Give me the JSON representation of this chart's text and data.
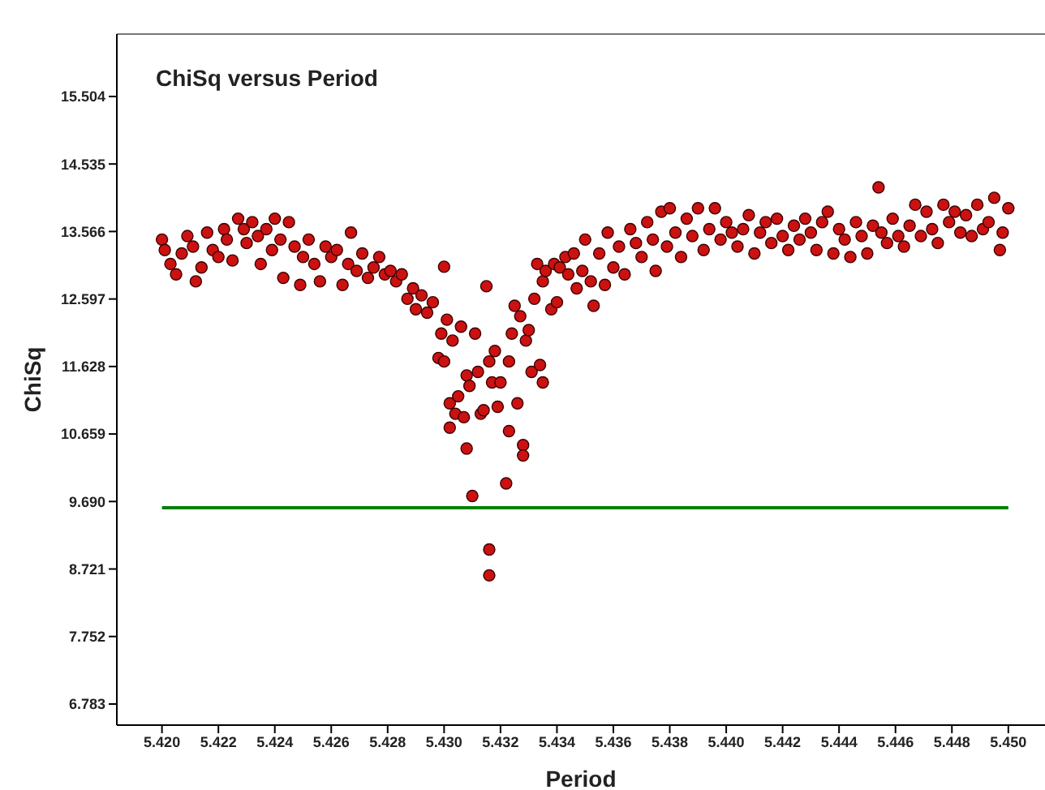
{
  "chart_data": {
    "type": "scatter",
    "title": "ChiSq versus Period",
    "xlabel": "Period",
    "ylabel": "ChiSq",
    "xlim": [
      5.4184,
      5.4513
    ],
    "ylim": [
      6.48,
      16.4
    ],
    "xticks": [
      {
        "value": 5.42,
        "label": "5.420"
      },
      {
        "value": 5.422,
        "label": "5.422"
      },
      {
        "value": 5.424,
        "label": "5.424"
      },
      {
        "value": 5.426,
        "label": "5.426"
      },
      {
        "value": 5.428,
        "label": "5.428"
      },
      {
        "value": 5.43,
        "label": "5.430"
      },
      {
        "value": 5.432,
        "label": "5.432"
      },
      {
        "value": 5.434,
        "label": "5.434"
      },
      {
        "value": 5.436,
        "label": "5.436"
      },
      {
        "value": 5.438,
        "label": "5.438"
      },
      {
        "value": 5.44,
        "label": "5.440"
      },
      {
        "value": 5.442,
        "label": "5.442"
      },
      {
        "value": 5.444,
        "label": "5.444"
      },
      {
        "value": 5.446,
        "label": "5.446"
      },
      {
        "value": 5.448,
        "label": "5.448"
      },
      {
        "value": 5.45,
        "label": "5.450"
      }
    ],
    "yticks": [
      {
        "value": 6.783,
        "label": "6.783"
      },
      {
        "value": 7.752,
        "label": "7.752"
      },
      {
        "value": 8.721,
        "label": "8.721"
      },
      {
        "value": 9.69,
        "label": "9.690"
      },
      {
        "value": 10.659,
        "label": "10.659"
      },
      {
        "value": 11.628,
        "label": "11.628"
      },
      {
        "value": 12.597,
        "label": "12.597"
      },
      {
        "value": 13.566,
        "label": "13.566"
      },
      {
        "value": 14.535,
        "label": "14.535"
      },
      {
        "value": 15.504,
        "label": "15.504"
      }
    ],
    "series": [
      {
        "marker": "circle",
        "color": "#cc1111",
        "x": [
          5.42,
          5.4201,
          5.4203,
          5.4205,
          5.4207,
          5.4209,
          5.4211,
          5.4212,
          5.4214,
          5.4216,
          5.4218,
          5.422,
          5.4222,
          5.4223,
          5.4225,
          5.4227,
          5.4229,
          5.423,
          5.4232,
          5.4234,
          5.4235,
          5.4237,
          5.4239,
          5.424,
          5.4242,
          5.4243,
          5.4245,
          5.4247,
          5.4249,
          5.425,
          5.4252,
          5.4254,
          5.4256,
          5.4258,
          5.426,
          5.4262,
          5.4264,
          5.4266,
          5.4267,
          5.4269,
          5.4271,
          5.4273,
          5.4275,
          5.4277,
          5.4279,
          5.4281,
          5.4283,
          5.4285,
          5.4287,
          5.4289,
          5.429,
          5.4292,
          5.4294,
          5.4296,
          5.43,
          5.4298,
          5.4299,
          5.43,
          5.4301,
          5.4302,
          5.4302,
          5.4303,
          5.4304,
          5.4305,
          5.4306,
          5.4307,
          5.4308,
          5.4308,
          5.4309,
          5.431,
          5.4311,
          5.4312,
          5.4313,
          5.4314,
          5.4315,
          5.4316,
          5.4316,
          5.4316,
          5.4317,
          5.4318,
          5.4319,
          5.432,
          5.4322,
          5.4323,
          5.4323,
          5.4324,
          5.4325,
          5.4326,
          5.4327,
          5.4328,
          5.4328,
          5.4329,
          5.433,
          5.4331,
          5.4332,
          5.4333,
          5.4334,
          5.4335,
          5.4335,
          5.4336,
          5.4338,
          5.4339,
          5.434,
          5.4341,
          5.4343,
          5.4344,
          5.4346,
          5.4347,
          5.4349,
          5.435,
          5.4352,
          5.4353,
          5.4355,
          5.4357,
          5.4358,
          5.436,
          5.4362,
          5.4364,
          5.4366,
          5.4368,
          5.437,
          5.4372,
          5.4374,
          5.4375,
          5.4377,
          5.4379,
          5.438,
          5.4382,
          5.4384,
          5.4386,
          5.4388,
          5.439,
          5.4392,
          5.4394,
          5.4396,
          5.4398,
          5.44,
          5.4402,
          5.4404,
          5.4406,
          5.4408,
          5.441,
          5.4412,
          5.4414,
          5.4416,
          5.4418,
          5.442,
          5.4422,
          5.4424,
          5.4426,
          5.4428,
          5.443,
          5.4432,
          5.4434,
          5.4436,
          5.4438,
          5.444,
          5.4442,
          5.4444,
          5.4446,
          5.4448,
          5.445,
          5.4452,
          5.4454,
          5.4455,
          5.4457,
          5.4459,
          5.4461,
          5.4463,
          5.4465,
          5.4467,
          5.4469,
          5.4471,
          5.4473,
          5.4475,
          5.4477,
          5.4479,
          5.4481,
          5.4483,
          5.4485,
          5.4487,
          5.4489,
          5.4491,
          5.4493,
          5.4495,
          5.4497,
          5.4498,
          5.45
        ],
        "values": [
          13.45,
          13.3,
          13.1,
          12.95,
          13.25,
          13.5,
          13.35,
          12.85,
          13.05,
          13.55,
          13.3,
          13.2,
          13.6,
          13.45,
          13.15,
          13.75,
          13.6,
          13.4,
          13.7,
          13.5,
          13.1,
          13.6,
          13.3,
          13.75,
          13.45,
          12.9,
          13.7,
          13.35,
          12.8,
          13.2,
          13.45,
          13.1,
          12.85,
          13.35,
          13.2,
          13.3,
          12.8,
          13.1,
          13.55,
          13.0,
          13.25,
          12.9,
          13.05,
          13.2,
          12.95,
          13.0,
          12.85,
          12.95,
          12.6,
          12.75,
          12.45,
          12.65,
          12.4,
          12.55,
          13.06,
          11.75,
          12.1,
          11.7,
          12.3,
          10.75,
          11.1,
          12.0,
          10.95,
          11.2,
          12.2,
          10.9,
          11.5,
          10.45,
          11.35,
          9.77,
          12.1,
          11.55,
          10.95,
          11.0,
          12.78,
          9.0,
          8.63,
          11.7,
          11.4,
          11.85,
          11.05,
          11.4,
          9.95,
          10.7,
          11.7,
          12.1,
          12.5,
          11.1,
          12.35,
          10.5,
          10.35,
          12.0,
          12.15,
          11.55,
          12.6,
          13.1,
          11.65,
          11.4,
          12.85,
          13.0,
          12.45,
          13.1,
          12.55,
          13.05,
          13.2,
          12.95,
          13.25,
          12.75,
          13.0,
          13.45,
          12.85,
          12.5,
          13.25,
          12.8,
          13.55,
          13.05,
          13.35,
          12.95,
          13.6,
          13.4,
          13.2,
          13.7,
          13.45,
          13.0,
          13.85,
          13.35,
          13.9,
          13.55,
          13.2,
          13.75,
          13.5,
          13.9,
          13.3,
          13.6,
          13.9,
          13.45,
          13.7,
          13.55,
          13.35,
          13.6,
          13.8,
          13.25,
          13.55,
          13.7,
          13.4,
          13.75,
          13.5,
          13.3,
          13.65,
          13.45,
          13.75,
          13.55,
          13.3,
          13.7,
          13.85,
          13.25,
          13.6,
          13.45,
          13.2,
          13.7,
          13.5,
          13.25,
          13.65,
          14.2,
          13.55,
          13.4,
          13.75,
          13.5,
          13.35,
          13.65,
          13.95,
          13.5,
          13.85,
          13.6,
          13.4,
          13.95,
          13.7,
          13.85,
          13.55,
          13.8,
          13.5,
          13.95,
          13.6,
          13.7,
          14.05,
          13.3,
          13.55,
          13.9
        ]
      },
      {
        "type": "line",
        "color": "#008000",
        "x": [
          5.42,
          5.45
        ],
        "values": [
          9.6,
          9.6
        ]
      }
    ]
  }
}
